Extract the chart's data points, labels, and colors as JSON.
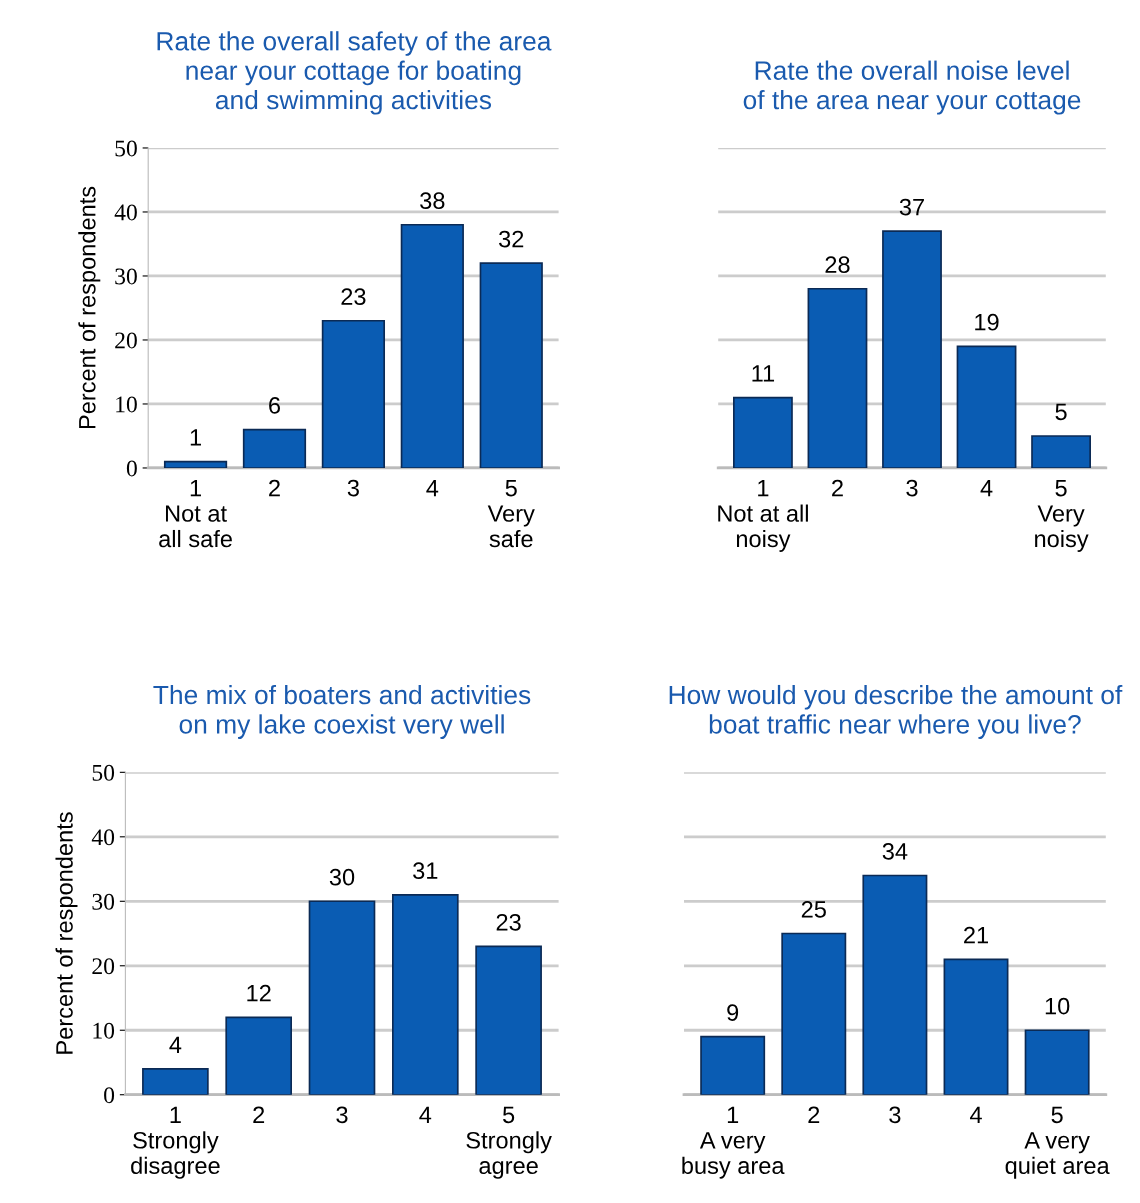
{
  "chart_data": [
    {
      "type": "bar",
      "title": "Rate the overall safety of the area\nnear your cottage for boating\nand swimming activities",
      "ylabel": "Percent of respondents",
      "categories": [
        "1\nNot at\nall safe",
        "2",
        "3",
        "4",
        "5\nVery\nsafe"
      ],
      "values": [
        1,
        6,
        23,
        38,
        32
      ],
      "color": "#0a5cb3",
      "ylim": [
        0,
        50
      ],
      "yticks": [
        0,
        10,
        20,
        30,
        40,
        50
      ],
      "grid": "y",
      "data_labels": true
    },
    {
      "type": "bar",
      "title": "Rate the overall noise level\nof the area near your cottage",
      "categories": [
        "1\nNot at all\nnoisy",
        "2",
        "3",
        "4",
        "5\nVery\nnoisy"
      ],
      "values": [
        11,
        28,
        37,
        19,
        5
      ],
      "color": "#0a5cb3",
      "ylim": [
        0,
        50
      ],
      "yticks": [
        0,
        10,
        20,
        30,
        40,
        50
      ],
      "grid": "y",
      "data_labels": true,
      "tick_labels": "x"
    },
    {
      "type": "bar",
      "title": "The mix of boaters and activities\non my lake coexist very well",
      "ylabel": "Percent of respondents",
      "categories": [
        "1\nStrongly\ndisagree",
        "2",
        "3",
        "4",
        "5\nStrongly\nagree"
      ],
      "values": [
        4,
        12,
        30,
        31,
        23
      ],
      "color": "#0a5cb3",
      "ylim": [
        0,
        50
      ],
      "yticks": [
        0,
        10,
        20,
        30,
        40,
        50
      ],
      "grid": "y",
      "data_labels": true
    },
    {
      "type": "bar",
      "title": "How would you describe the amount of\nboat traffic near where you live?",
      "categories": [
        "1\nA very\nbusy area",
        "2",
        "3",
        "4",
        "5\nA very\nquiet area"
      ],
      "values": [
        9,
        25,
        34,
        21,
        10
      ],
      "color": "#0a5cb3",
      "ylim": [
        0,
        50
      ],
      "yticks": [
        0,
        10,
        20,
        30,
        40,
        50
      ],
      "grid": "y",
      "data_labels": true,
      "tick_labels": "x"
    }
  ]
}
